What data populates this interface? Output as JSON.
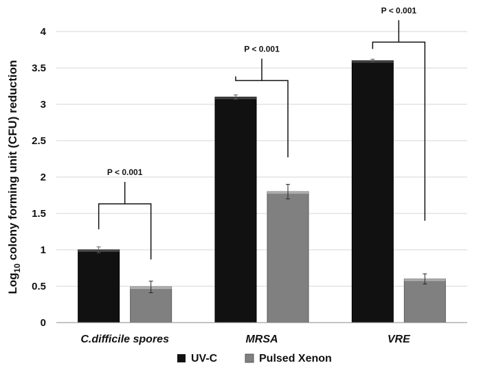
{
  "chart_data": {
    "type": "bar",
    "ylabel_main": "Log",
    "ylabel_sub": "10",
    "ylabel_rest": " colony forming unit (CFU) reduction",
    "categories": [
      "C.difficile spores",
      "MRSA",
      "VRE"
    ],
    "ylim": [
      0,
      4
    ],
    "yticks": [
      "0",
      "0.5",
      "1",
      "1.5",
      "2",
      "2.5",
      "3",
      "3.5",
      "4"
    ],
    "grid": true,
    "legend_position": "bottom",
    "series": [
      {
        "name": "UV-C",
        "color": "#111111",
        "values": [
          1.0,
          3.1,
          3.6
        ],
        "errors": [
          0.04,
          0.03,
          0.02
        ]
      },
      {
        "name": "Pulsed Xenon",
        "color": "#808080",
        "values": [
          0.49,
          1.8,
          0.6
        ],
        "errors": [
          0.08,
          0.1,
          0.07
        ]
      }
    ],
    "annotations": [
      {
        "category": "C.difficile spores",
        "text": "P < 0.001"
      },
      {
        "category": "MRSA",
        "text": "P < 0.001"
      },
      {
        "category": "VRE",
        "text": "P < 0.001"
      }
    ]
  }
}
